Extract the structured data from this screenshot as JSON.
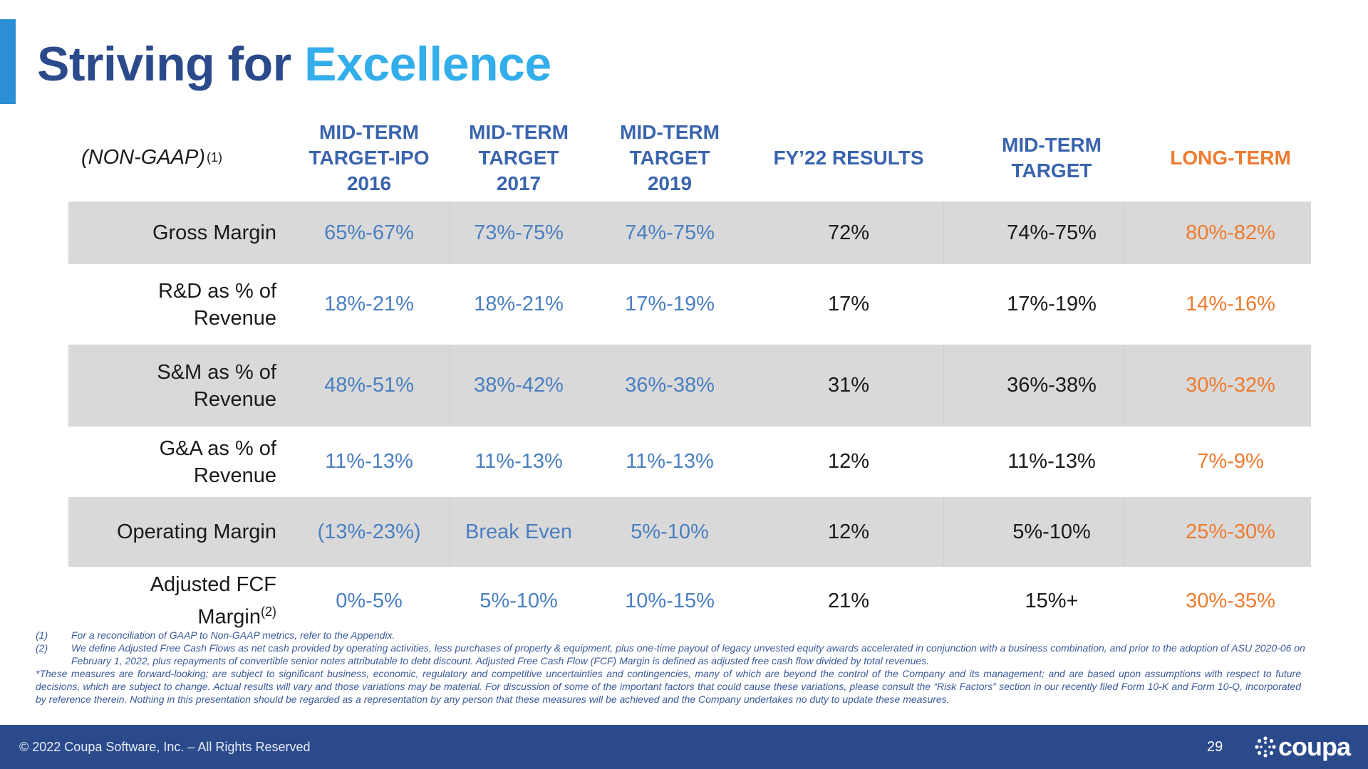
{
  "title": {
    "part1": "Striving for",
    "part2": "Excellence"
  },
  "table": {
    "header_label": "(NON-GAAP)",
    "header_label_sup": "(1)",
    "columns": [
      "MID-TERM\nTARGET-IPO\n2016",
      "MID-TERM\nTARGET\n2017",
      "MID-TERM\nTARGET\n2019",
      "FY’22 RESULTS",
      "MID-TERM\nTARGET",
      "LONG-TERM"
    ],
    "rows": [
      {
        "label": "Gross Margin",
        "sup": "",
        "values": [
          "65%-67%",
          "73%-75%",
          "74%-75%",
          "72%",
          "74%-75%",
          "80%-82%"
        ]
      },
      {
        "label": "R&D as % of\nRevenue",
        "sup": "",
        "values": [
          "18%-21%",
          "18%-21%",
          "17%-19%",
          "17%",
          "17%-19%",
          "14%-16%"
        ]
      },
      {
        "label": "S&M as % of\nRevenue",
        "sup": "",
        "values": [
          "48%-51%",
          "38%-42%",
          "36%-38%",
          "31%",
          "36%-38%",
          "30%-32%"
        ]
      },
      {
        "label": "G&A as % of\nRevenue",
        "sup": "",
        "values": [
          "11%-13%",
          "11%-13%",
          "11%-13%",
          "12%",
          "11%-13%",
          "7%-9%"
        ]
      },
      {
        "label": "Operating Margin",
        "sup": "",
        "values": [
          "(13%-23%)",
          "Break Even",
          "5%-10%",
          "12%",
          "5%-10%",
          "25%-30%"
        ]
      },
      {
        "label": "Adjusted FCF\nMargin",
        "sup": "(2)",
        "values": [
          "0%-5%",
          "5%-10%",
          "10%-15%",
          "21%",
          "15%+",
          "30%-35%"
        ]
      }
    ]
  },
  "footnotes": {
    "fn1_num": "(1)",
    "fn1_text": "For a reconciliation of GAAP to Non-GAAP metrics, refer to the Appendix.",
    "fn2_num": "(2)",
    "fn2_text": "We define Adjusted Free Cash Flows as net cash provided by operating activities, less purchases of property & equipment, plus one-time payout of legacy unvested equity awards accelerated in conjunction with a business combination, and prior to the adoption of ASU 2020-06 on February 1, 2022, plus repayments of convertible senior notes attributable to debt discount. Adjusted Free Cash Flow (FCF) Margin is defined as adjusted free cash flow divided by total revenues.",
    "disclaimer": "*These measures are forward-looking; are subject to significant business, economic, regulatory and competitive uncertainties and contingencies, many of which are beyond the control of the Company and its management; and are based upon assumptions with respect to future decisions, which are subject to change. Actual results will vary and those variations may be material. For discussion of some of the important factors that could cause these variations, please consult the “Risk Factors” section in our recently filed Form 10-K and Form 10-Q, incorporated by reference therein. Nothing in this presentation should be regarded as a representation by any person that these measures will be achieved and the Company undertakes no duty to update these measures."
  },
  "footer": {
    "copyright": "© 2022 Coupa Software, Inc. – All Rights Reserved",
    "page_number": "29",
    "logo_text": "coupa"
  },
  "colors": {
    "title_dark": "#2b4a8c",
    "title_light": "#33aeea",
    "header_blue": "#3a64ad",
    "value_blue": "#4a7fc1",
    "long_term_orange": "#ee7b30",
    "row_shade": "#d9d9d9",
    "footer_bg": "#2b4a8c"
  }
}
